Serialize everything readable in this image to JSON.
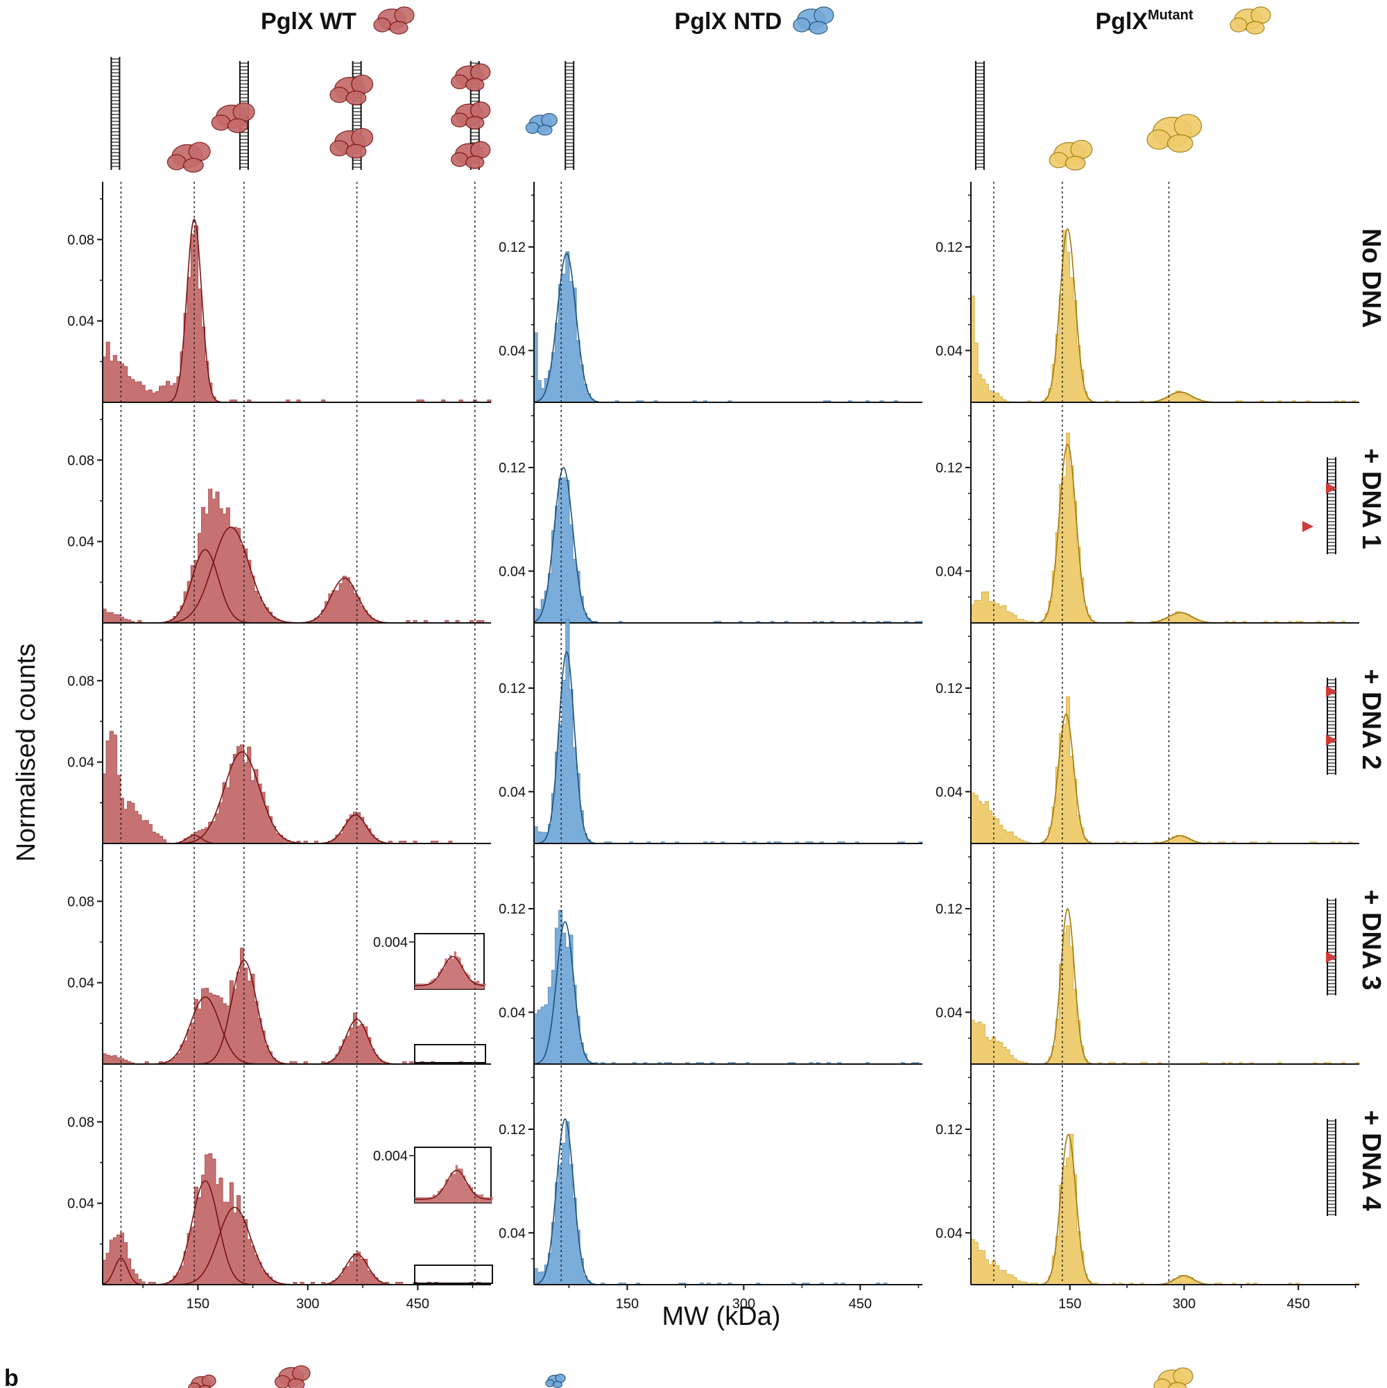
{
  "figure": {
    "panel_label": "b",
    "ylabel": "Normalised counts",
    "xlabel": "MW (kDa)"
  },
  "colors": {
    "WT": {
      "fill": "#c46b6b",
      "line": "#7a1010"
    },
    "NTD": {
      "fill": "#74a9da",
      "line": "#1d4f7a"
    },
    "Mutant": {
      "fill": "#efcb6b",
      "line": "#a07a0c"
    },
    "axis": "#111111",
    "arrow": "#d03a3a"
  },
  "chart_data": [
    {
      "type": "histogram",
      "column": "WT",
      "title": "PglX WT",
      "x_ticks": [
        150,
        300,
        450
      ],
      "xlim": [
        20,
        550
      ],
      "ylim": [
        0,
        0.105
      ],
      "y_ticks": [
        0.04,
        0.08
      ],
      "y_tick_labels": [
        "0.04",
        "0.08"
      ],
      "reference_lines_kDa": [
        45,
        145,
        213,
        367,
        528
      ],
      "rows": [
        {
          "condition": "No DNA",
          "baseline": [
            [
              20,
              0.028
            ],
            [
              45,
              0.02
            ],
            [
              65,
              0.01
            ],
            [
              90,
              0.004
            ],
            [
              110,
              0.01
            ]
          ],
          "fits": [
            {
              "mu": 145,
              "sigma": 10,
              "amp": 0.09
            }
          ]
        },
        {
          "condition": "+ DNA 1",
          "baseline": [
            [
              20,
              0.007
            ],
            [
              45,
              0.003
            ]
          ],
          "fits": [
            {
              "mu": 160,
              "sigma": 18,
              "amp": 0.036
            },
            {
              "mu": 195,
              "sigma": 25,
              "amp": 0.047
            },
            {
              "mu": 350,
              "sigma": 18,
              "amp": 0.022
            }
          ]
        },
        {
          "condition": "+ DNA 2",
          "baseline": [
            [
              20,
              0.036
            ],
            [
              35,
              0.058
            ],
            [
              45,
              0.022
            ],
            [
              70,
              0.015
            ],
            [
              90,
              0.006
            ]
          ],
          "fits": [
            {
              "mu": 145,
              "sigma": 10,
              "amp": 0.004
            },
            {
              "mu": 210,
              "sigma": 24,
              "amp": 0.045
            },
            {
              "mu": 365,
              "sigma": 15,
              "amp": 0.014
            }
          ]
        },
        {
          "condition": "+ DNA 3",
          "baseline": [
            [
              20,
              0.005
            ],
            [
              45,
              0.003
            ]
          ],
          "fits": [
            {
              "mu": 160,
              "sigma": 20,
              "amp": 0.033
            },
            {
              "mu": 213,
              "sigma": 17,
              "amp": 0.051
            },
            {
              "mu": 367,
              "sigma": 15,
              "amp": 0.022
            }
          ],
          "inset": {
            "ylabel": "0.004",
            "peak_kDa": 515
          }
        },
        {
          "condition": "+ DNA 4",
          "baseline": [
            [
              20,
              0.014
            ],
            [
              45,
              0.014
            ],
            [
              60,
              0.005
            ]
          ],
          "fits": [
            {
              "mu": 45,
              "sigma": 9,
              "amp": 0.013
            },
            {
              "mu": 160,
              "sigma": 18,
              "amp": 0.051
            },
            {
              "mu": 200,
              "sigma": 22,
              "amp": 0.038
            },
            {
              "mu": 367,
              "sigma": 15,
              "amp": 0.015
            }
          ],
          "inset": {
            "ylabel": "0.004",
            "peak_kDa": 518
          }
        }
      ]
    },
    {
      "type": "histogram",
      "column": "NTD",
      "title": "PglX NTD",
      "x_ticks": [
        150,
        300,
        450
      ],
      "xlim": [
        30,
        530
      ],
      "ylim": [
        0,
        0.165
      ],
      "y_ticks": [
        0.04,
        0.12
      ],
      "y_tick_labels": [
        "0.04",
        "0.12"
      ],
      "reference_lines_kDa": [
        65
      ],
      "rows": [
        {
          "condition": "No DNA",
          "baseline": [
            [
              30,
              0.06
            ],
            [
              38,
              0.01
            ]
          ],
          "fits": [
            {
              "mu": 72,
              "sigma": 12,
              "amp": 0.115
            }
          ]
        },
        {
          "condition": "+ DNA 1",
          "baseline": [
            [
              30,
              0.012
            ]
          ],
          "fits": [
            {
              "mu": 68,
              "sigma": 12,
              "amp": 0.12
            }
          ]
        },
        {
          "condition": "+ DNA 2",
          "baseline": [
            [
              30,
              0.015
            ]
          ],
          "fits": [
            {
              "mu": 72,
              "sigma": 10,
              "amp": 0.148
            }
          ]
        },
        {
          "condition": "+ DNA 3",
          "baseline": [
            [
              30,
              0.03
            ],
            [
              40,
              0.048
            ],
            [
              50,
              0.04
            ]
          ],
          "fits": [
            {
              "mu": 70,
              "sigma": 11,
              "amp": 0.11
            }
          ]
        },
        {
          "condition": "+ DNA 4",
          "baseline": [
            [
              30,
              0.012
            ]
          ],
          "fits": [
            {
              "mu": 70,
              "sigma": 11,
              "amp": 0.128
            }
          ]
        }
      ]
    },
    {
      "type": "histogram",
      "column": "Mutant",
      "title": "PglX",
      "title_superscript": "Mutant",
      "x_ticks": [
        150,
        300,
        450
      ],
      "xlim": [
        20,
        530
      ],
      "ylim": [
        0,
        0.165
      ],
      "y_ticks": [
        0.04,
        0.12
      ],
      "y_tick_labels": [
        "0.04",
        "0.12"
      ],
      "reference_lines_kDa": [
        50,
        140,
        280
      ],
      "rows": [
        {
          "condition": "No DNA",
          "baseline": [
            [
              20,
              0.09
            ],
            [
              30,
              0.02
            ],
            [
              50,
              0.008
            ]
          ],
          "fits": [
            {
              "mu": 147,
              "sigma": 10,
              "amp": 0.134
            },
            {
              "mu": 295,
              "sigma": 15,
              "amp": 0.008
            }
          ]
        },
        {
          "condition": "+ DNA 1",
          "baseline": [
            [
              20,
              0.014
            ],
            [
              40,
              0.022
            ],
            [
              60,
              0.014
            ],
            [
              80,
              0.004
            ]
          ],
          "fits": [
            {
              "mu": 147,
              "sigma": 11,
              "amp": 0.138
            },
            {
              "mu": 295,
              "sigma": 15,
              "amp": 0.008
            }
          ]
        },
        {
          "condition": "+ DNA 2",
          "baseline": [
            [
              20,
              0.04
            ],
            [
              40,
              0.035
            ],
            [
              60,
              0.015
            ],
            [
              80,
              0.004
            ]
          ],
          "fits": [
            {
              "mu": 145,
              "sigma": 10,
              "amp": 0.1
            },
            {
              "mu": 295,
              "sigma": 12,
              "amp": 0.006
            }
          ]
        },
        {
          "condition": "+ DNA 3",
          "baseline": [
            [
              20,
              0.035
            ],
            [
              40,
              0.025
            ],
            [
              60,
              0.015
            ],
            [
              80,
              0.003
            ]
          ],
          "fits": [
            {
              "mu": 147,
              "sigma": 9,
              "amp": 0.12
            }
          ]
        },
        {
          "condition": "+ DNA 4",
          "baseline": [
            [
              20,
              0.035
            ],
            [
              40,
              0.02
            ],
            [
              60,
              0.012
            ],
            [
              80,
              0.004
            ]
          ],
          "fits": [
            {
              "mu": 148,
              "sigma": 10,
              "amp": 0.116
            },
            {
              "mu": 300,
              "sigma": 12,
              "amp": 0.007
            }
          ]
        }
      ]
    }
  ],
  "row_labels": [
    "No DNA",
    "+ DNA 1",
    "+ DNA 2",
    "+ DNA 3",
    "+ DNA 4"
  ]
}
